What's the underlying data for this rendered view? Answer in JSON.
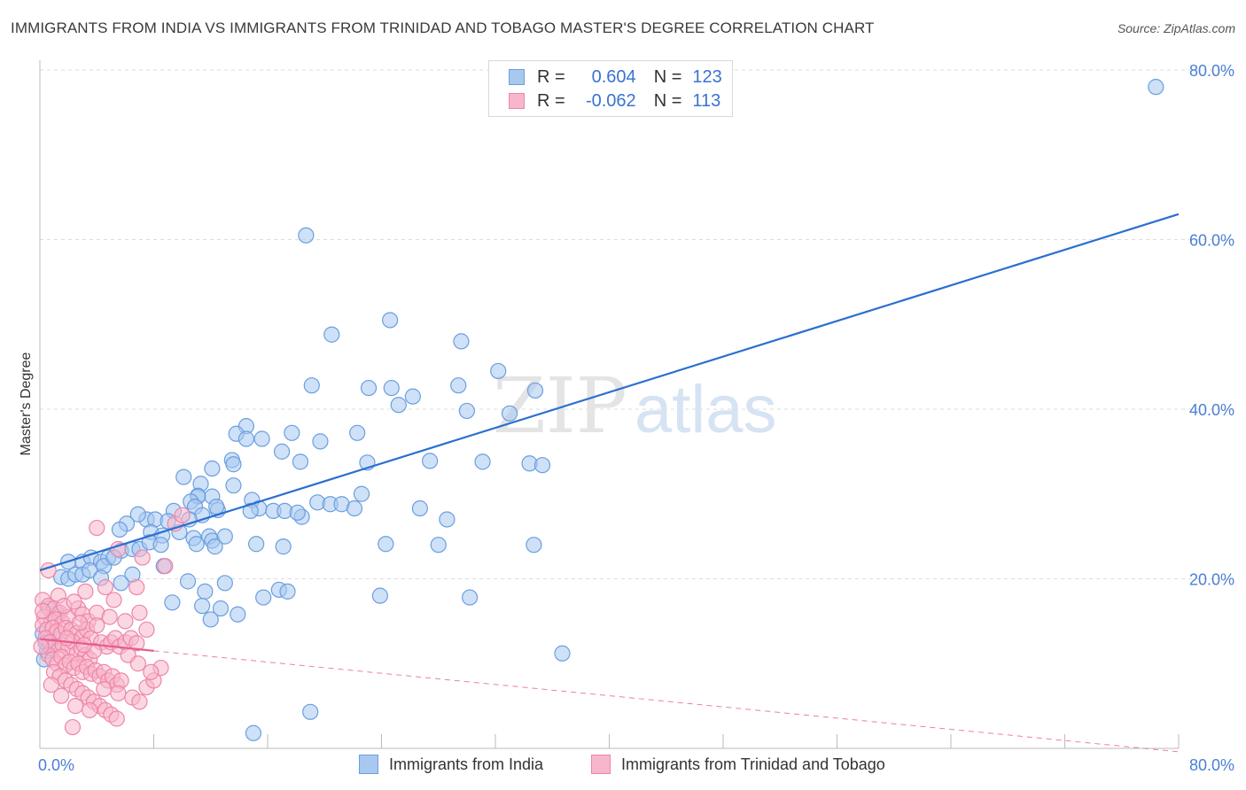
{
  "title": "IMMIGRANTS FROM INDIA VS IMMIGRANTS FROM TRINIDAD AND TOBAGO MASTER'S DEGREE CORRELATION CHART",
  "source": "Source: ZipAtlas.com",
  "watermark": {
    "zip": "ZIP",
    "atlas": "atlas"
  },
  "legend": {
    "india": {
      "r_label": "R =",
      "r_value": "0.604",
      "n_label": "N =",
      "n_value": "123"
    },
    "tt": {
      "r_label": "R =",
      "r_value": "-0.062",
      "n_label": "N =",
      "n_value": "113"
    }
  },
  "bottom_legend": {
    "india": "Immigrants from India",
    "tt": "Immigrants from Trinidad and Tobago"
  },
  "colors": {
    "india_fill": "#a8c8f0",
    "india_stroke": "#6a9ee0",
    "india_line": "#2a6fd0",
    "tt_fill": "#f7b6cb",
    "tt_stroke": "#ee85a8",
    "tt_line": "#e85d8f",
    "grid": "#dddddd",
    "tick_text": "#4a7fd4"
  },
  "chart_data": {
    "type": "scatter",
    "title": "IMMIGRANTS FROM INDIA VS IMMIGRANTS FROM TRINIDAD AND TOBAGO MASTER'S DEGREE CORRELATION CHART",
    "xlabel": "",
    "ylabel": "Master's Degree",
    "xlim": [
      0,
      80
    ],
    "ylim": [
      0,
      80
    ],
    "x_tick_labels": [
      "0.0%",
      "80.0%"
    ],
    "y_ticks": [
      20,
      40,
      60,
      80
    ],
    "y_tick_labels": [
      "20.0%",
      "40.0%",
      "60.0%",
      "80.0%"
    ],
    "series": [
      {
        "name": "Immigrants from India",
        "r": 0.604,
        "n": 123,
        "trend": {
          "x": [
            0,
            80
          ],
          "y": [
            21.0,
            63.0
          ],
          "style": "solid"
        },
        "points": [
          [
            78.4,
            78.0
          ],
          [
            18.7,
            60.5
          ],
          [
            24.6,
            50.5
          ],
          [
            29.6,
            48.0
          ],
          [
            20.5,
            48.8
          ],
          [
            32.2,
            44.5
          ],
          [
            19.1,
            42.8
          ],
          [
            23.1,
            42.5
          ],
          [
            24.7,
            42.5
          ],
          [
            29.4,
            42.8
          ],
          [
            26.2,
            41.5
          ],
          [
            25.2,
            40.5
          ],
          [
            34.8,
            42.2
          ],
          [
            30.0,
            39.8
          ],
          [
            33.0,
            39.5
          ],
          [
            14.5,
            38.0
          ],
          [
            17.7,
            37.2
          ],
          [
            19.7,
            36.2
          ],
          [
            22.3,
            37.2
          ],
          [
            13.8,
            37.1
          ],
          [
            14.5,
            36.5
          ],
          [
            15.6,
            36.5
          ],
          [
            17.0,
            35.0
          ],
          [
            18.3,
            33.8
          ],
          [
            23.0,
            33.7
          ],
          [
            27.4,
            33.9
          ],
          [
            31.1,
            33.8
          ],
          [
            34.4,
            33.6
          ],
          [
            35.3,
            33.4
          ],
          [
            13.5,
            34.0
          ],
          [
            12.1,
            33.0
          ],
          [
            13.6,
            33.5
          ],
          [
            10.1,
            32.0
          ],
          [
            11.3,
            31.2
          ],
          [
            11.1,
            29.8
          ],
          [
            12.1,
            29.7
          ],
          [
            13.6,
            31.0
          ],
          [
            14.9,
            29.3
          ],
          [
            15.4,
            28.3
          ],
          [
            11.1,
            29.7
          ],
          [
            22.6,
            30.0
          ],
          [
            10.6,
            29.1
          ],
          [
            9.4,
            28.0
          ],
          [
            10.9,
            28.5
          ],
          [
            11.4,
            27.5
          ],
          [
            12.5,
            28.1
          ],
          [
            14.8,
            28.0
          ],
          [
            16.4,
            28.0
          ],
          [
            17.2,
            28.0
          ],
          [
            18.4,
            27.3
          ],
          [
            18.1,
            27.8
          ],
          [
            19.5,
            29.0
          ],
          [
            20.4,
            28.8
          ],
          [
            21.2,
            28.8
          ],
          [
            22.1,
            28.3
          ],
          [
            26.7,
            28.3
          ],
          [
            28.6,
            27.0
          ],
          [
            7.5,
            27.0
          ],
          [
            6.9,
            27.6
          ],
          [
            8.1,
            27.0
          ],
          [
            9.0,
            26.8
          ],
          [
            10.5,
            27.0
          ],
          [
            12.4,
            28.5
          ],
          [
            6.1,
            26.5
          ],
          [
            5.6,
            25.8
          ],
          [
            7.8,
            25.5
          ],
          [
            8.6,
            25.1
          ],
          [
            9.8,
            25.5
          ],
          [
            10.8,
            24.8
          ],
          [
            11.9,
            25.0
          ],
          [
            12.1,
            24.5
          ],
          [
            13.0,
            25.0
          ],
          [
            15.2,
            24.1
          ],
          [
            24.3,
            24.1
          ],
          [
            28.0,
            24.0
          ],
          [
            34.7,
            24.0
          ],
          [
            2.0,
            22.0
          ],
          [
            3.0,
            22.0
          ],
          [
            3.6,
            22.5
          ],
          [
            4.3,
            22.0
          ],
          [
            4.8,
            22.5
          ],
          [
            5.7,
            23.3
          ],
          [
            6.5,
            23.5
          ],
          [
            7.0,
            23.5
          ],
          [
            7.7,
            24.3
          ],
          [
            8.5,
            24.0
          ],
          [
            11.0,
            24.1
          ],
          [
            12.3,
            23.8
          ],
          [
            17.1,
            23.8
          ],
          [
            1.5,
            20.2
          ],
          [
            2.0,
            20.0
          ],
          [
            2.5,
            20.5
          ],
          [
            3.0,
            20.5
          ],
          [
            3.5,
            21.0
          ],
          [
            4.5,
            21.5
          ],
          [
            5.2,
            22.5
          ],
          [
            6.5,
            20.5
          ],
          [
            8.7,
            21.5
          ],
          [
            5.7,
            19.5
          ],
          [
            4.3,
            20.1
          ],
          [
            10.4,
            19.7
          ],
          [
            13.0,
            19.5
          ],
          [
            16.8,
            18.7
          ],
          [
            17.4,
            18.5
          ],
          [
            15.7,
            17.8
          ],
          [
            30.2,
            17.8
          ],
          [
            23.9,
            18.0
          ],
          [
            9.3,
            17.2
          ],
          [
            11.6,
            18.5
          ],
          [
            11.4,
            16.8
          ],
          [
            12.7,
            16.5
          ],
          [
            13.9,
            15.8
          ],
          [
            12.0,
            15.2
          ],
          [
            36.7,
            11.2
          ],
          [
            19.0,
            4.3
          ],
          [
            15.0,
            1.8
          ],
          [
            0.3,
            10.5
          ],
          [
            0.5,
            11.5
          ],
          [
            0.8,
            11.8
          ],
          [
            1.0,
            13.0
          ],
          [
            1.2,
            16.0
          ],
          [
            0.6,
            16.5
          ],
          [
            0.2,
            13.5
          ],
          [
            0.4,
            12.5
          ]
        ]
      },
      {
        "name": "Immigrants from Trinidad and Tobago",
        "r": -0.062,
        "n": 113,
        "trend": {
          "x": [
            0,
            8,
            80
          ],
          "y": [
            12.9,
            11.5,
            -0.4
          ],
          "style": "solid-then-dashed"
        },
        "points": [
          [
            0.6,
            21.0
          ],
          [
            1.3,
            18.0
          ],
          [
            3.2,
            18.5
          ],
          [
            0.2,
            17.5
          ],
          [
            0.6,
            16.8
          ],
          [
            1.0,
            16.5
          ],
          [
            1.4,
            16.0
          ],
          [
            0.3,
            15.5
          ],
          [
            0.8,
            15.0
          ],
          [
            1.1,
            15.2
          ],
          [
            1.6,
            14.8
          ],
          [
            2.0,
            15.5
          ],
          [
            2.7,
            16.5
          ],
          [
            3.0,
            15.8
          ],
          [
            3.4,
            15.0
          ],
          [
            4.0,
            16.0
          ],
          [
            0.2,
            14.5
          ],
          [
            0.5,
            14.0
          ],
          [
            0.9,
            14.2
          ],
          [
            1.2,
            13.8
          ],
          [
            1.5,
            13.5
          ],
          [
            1.8,
            14.2
          ],
          [
            2.2,
            14.0
          ],
          [
            2.6,
            13.6
          ],
          [
            3.0,
            13.2
          ],
          [
            3.3,
            14.0
          ],
          [
            3.6,
            13.0
          ],
          [
            4.0,
            14.5
          ],
          [
            4.3,
            12.5
          ],
          [
            4.7,
            12.0
          ],
          [
            5.0,
            12.5
          ],
          [
            5.3,
            13.0
          ],
          [
            5.6,
            12.0
          ],
          [
            6.0,
            12.5
          ],
          [
            6.4,
            13.0
          ],
          [
            6.8,
            12.4
          ],
          [
            0.4,
            13.0
          ],
          [
            0.7,
            12.5
          ],
          [
            1.0,
            12.0
          ],
          [
            1.3,
            11.5
          ],
          [
            1.6,
            12.2
          ],
          [
            2.0,
            11.8
          ],
          [
            2.3,
            12.6
          ],
          [
            2.6,
            11.2
          ],
          [
            2.9,
            11.8
          ],
          [
            3.2,
            11.0
          ],
          [
            3.5,
            10.5
          ],
          [
            3.8,
            11.5
          ],
          [
            0.6,
            11.0
          ],
          [
            0.9,
            10.5
          ],
          [
            1.2,
            10.0
          ],
          [
            1.5,
            10.8
          ],
          [
            1.8,
            9.8
          ],
          [
            2.1,
            10.2
          ],
          [
            2.4,
            9.5
          ],
          [
            2.7,
            10.0
          ],
          [
            3.0,
            9.0
          ],
          [
            3.3,
            9.6
          ],
          [
            3.6,
            8.8
          ],
          [
            3.9,
            9.2
          ],
          [
            4.2,
            8.5
          ],
          [
            4.5,
            9.0
          ],
          [
            4.8,
            8.0
          ],
          [
            5.1,
            8.5
          ],
          [
            5.4,
            7.5
          ],
          [
            5.7,
            8.0
          ],
          [
            1.0,
            9.0
          ],
          [
            1.4,
            8.5
          ],
          [
            1.8,
            8.0
          ],
          [
            2.2,
            7.5
          ],
          [
            2.6,
            7.0
          ],
          [
            3.0,
            6.5
          ],
          [
            3.4,
            6.0
          ],
          [
            3.8,
            5.5
          ],
          [
            4.2,
            5.0
          ],
          [
            4.6,
            4.5
          ],
          [
            5.0,
            4.0
          ],
          [
            5.4,
            3.5
          ],
          [
            2.3,
            2.5
          ],
          [
            0.8,
            7.5
          ],
          [
            1.5,
            6.2
          ],
          [
            2.5,
            5.0
          ],
          [
            3.5,
            4.5
          ],
          [
            4.5,
            7.0
          ],
          [
            5.5,
            6.5
          ],
          [
            6.5,
            6.0
          ],
          [
            7.0,
            5.5
          ],
          [
            7.5,
            7.2
          ],
          [
            8.0,
            8.0
          ],
          [
            8.5,
            9.5
          ],
          [
            4.0,
            26.0
          ],
          [
            5.5,
            23.5
          ],
          [
            7.2,
            22.5
          ],
          [
            8.8,
            21.5
          ],
          [
            9.5,
            26.5
          ],
          [
            10.0,
            27.5
          ],
          [
            6.8,
            19.0
          ],
          [
            5.2,
            17.5
          ],
          [
            4.6,
            19.0
          ],
          [
            6.0,
            15.0
          ],
          [
            7.0,
            16.0
          ],
          [
            7.5,
            14.0
          ],
          [
            2.8,
            14.8
          ],
          [
            3.1,
            12.2
          ],
          [
            1.9,
            13.0
          ],
          [
            0.1,
            12.0
          ],
          [
            0.2,
            16.2
          ],
          [
            1.7,
            16.8
          ],
          [
            2.4,
            17.3
          ],
          [
            4.9,
            15.5
          ],
          [
            6.2,
            11.0
          ],
          [
            6.9,
            10.0
          ],
          [
            7.8,
            9.0
          ]
        ]
      }
    ]
  }
}
